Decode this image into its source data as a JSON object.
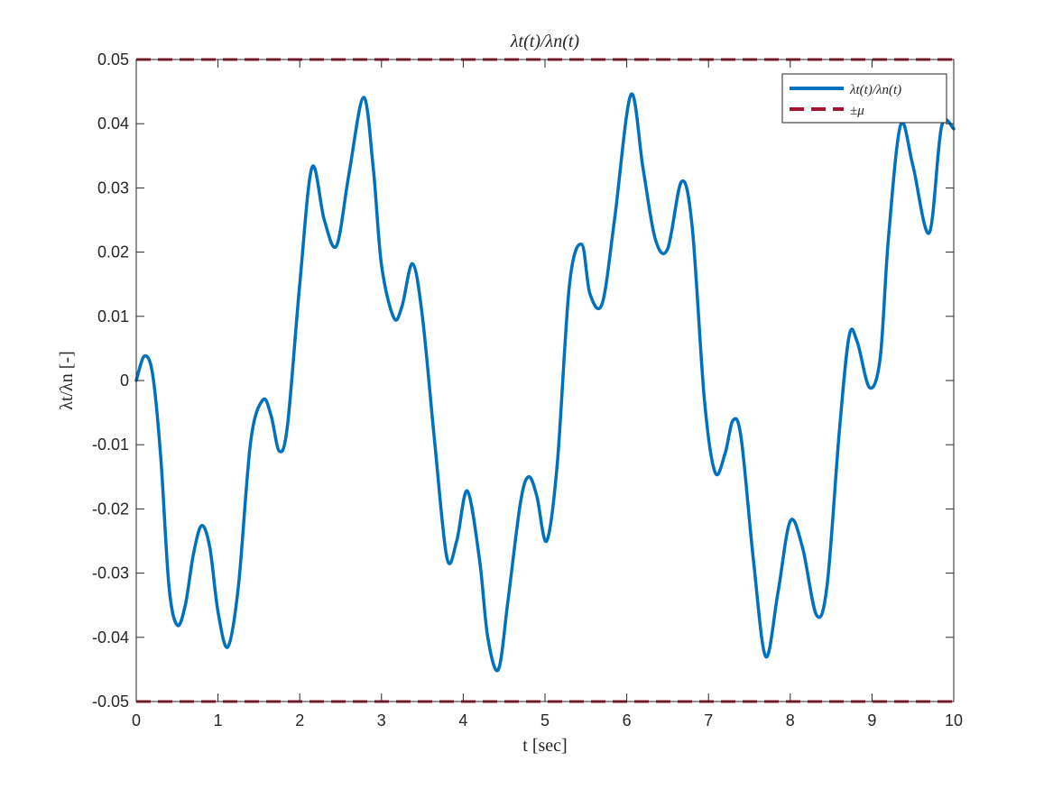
{
  "chart_data": {
    "type": "line",
    "title": "λt(t)/λn(t)",
    "xlabel": "t [sec]",
    "ylabel": "λt/λn [-]",
    "xlim": [
      0,
      10
    ],
    "ylim": [
      -0.05,
      0.05
    ],
    "x_ticks": [
      0,
      1,
      2,
      3,
      4,
      5,
      6,
      7,
      8,
      9,
      10
    ],
    "x_tick_labels": [
      "0",
      "1",
      "2",
      "3",
      "4",
      "5",
      "6",
      "7",
      "8",
      "9",
      "10"
    ],
    "y_ticks": [
      0.05,
      0.04,
      0.03,
      0.02,
      0.01,
      0,
      -0.01,
      -0.02,
      -0.03,
      -0.04,
      -0.05
    ],
    "y_tick_labels": [
      "0.05",
      "0.04",
      "0.03",
      "0.02",
      "0.01",
      "0",
      "-0.01",
      "-0.02",
      "-0.03",
      "-0.04",
      "-0.05"
    ],
    "grid": false,
    "box": true,
    "legend": {
      "placement": "top-right",
      "entries": [
        "λt(t)/λn(t)",
        "±μ"
      ]
    },
    "series": [
      {
        "name": "λt(t)/λn(t)",
        "color": "#0072BD",
        "style": "solid",
        "x": [
          0,
          0.1,
          0.2,
          0.3,
          0.4,
          0.5,
          0.6,
          0.7,
          0.8,
          0.9,
          1.0,
          1.12,
          1.25,
          1.4,
          1.55,
          1.65,
          1.75,
          1.85,
          2.0,
          2.15,
          2.3,
          2.45,
          2.6,
          2.78,
          2.9,
          3.0,
          3.15,
          3.25,
          3.38,
          3.5,
          3.65,
          3.8,
          3.92,
          4.05,
          4.2,
          4.3,
          4.43,
          4.55,
          4.7,
          4.8,
          4.9,
          5.02,
          5.15,
          5.3,
          5.45,
          5.55,
          5.7,
          5.85,
          6.05,
          6.2,
          6.35,
          6.5,
          6.67,
          6.8,
          6.95,
          7.08,
          7.2,
          7.3,
          7.4,
          7.55,
          7.7,
          7.85,
          8.0,
          8.15,
          8.32,
          8.45,
          8.6,
          8.72,
          8.82,
          8.97,
          9.1,
          9.2,
          9.35,
          9.5,
          9.7,
          9.85,
          10.0
        ],
        "y": [
          0.0,
          0.0038,
          0.001,
          -0.012,
          -0.032,
          -0.0381,
          -0.035,
          -0.027,
          -0.0226,
          -0.026,
          -0.036,
          -0.0415,
          -0.032,
          -0.0095,
          -0.003,
          -0.0055,
          -0.011,
          -0.007,
          0.015,
          0.0332,
          0.025,
          0.021,
          0.032,
          0.0441,
          0.033,
          0.018,
          0.0098,
          0.0115,
          0.0182,
          0.01,
          -0.0095,
          -0.0276,
          -0.025,
          -0.0172,
          -0.028,
          -0.04,
          -0.045,
          -0.034,
          -0.019,
          -0.015,
          -0.018,
          -0.025,
          -0.013,
          0.015,
          0.0212,
          0.0135,
          0.012,
          0.025,
          0.0445,
          0.033,
          0.022,
          0.0205,
          0.031,
          0.024,
          -0.003,
          -0.0143,
          -0.0115,
          -0.0062,
          -0.009,
          -0.028,
          -0.043,
          -0.033,
          -0.0219,
          -0.026,
          -0.0365,
          -0.032,
          -0.008,
          0.0069,
          0.006,
          -0.0011,
          0.0035,
          0.022,
          0.0398,
          0.0335,
          0.023,
          0.0395,
          0.0392
        ]
      },
      {
        "name": "±μ",
        "color": "#A2142F",
        "style": "dashed",
        "values": [
          0.05,
          -0.05
        ]
      }
    ]
  }
}
